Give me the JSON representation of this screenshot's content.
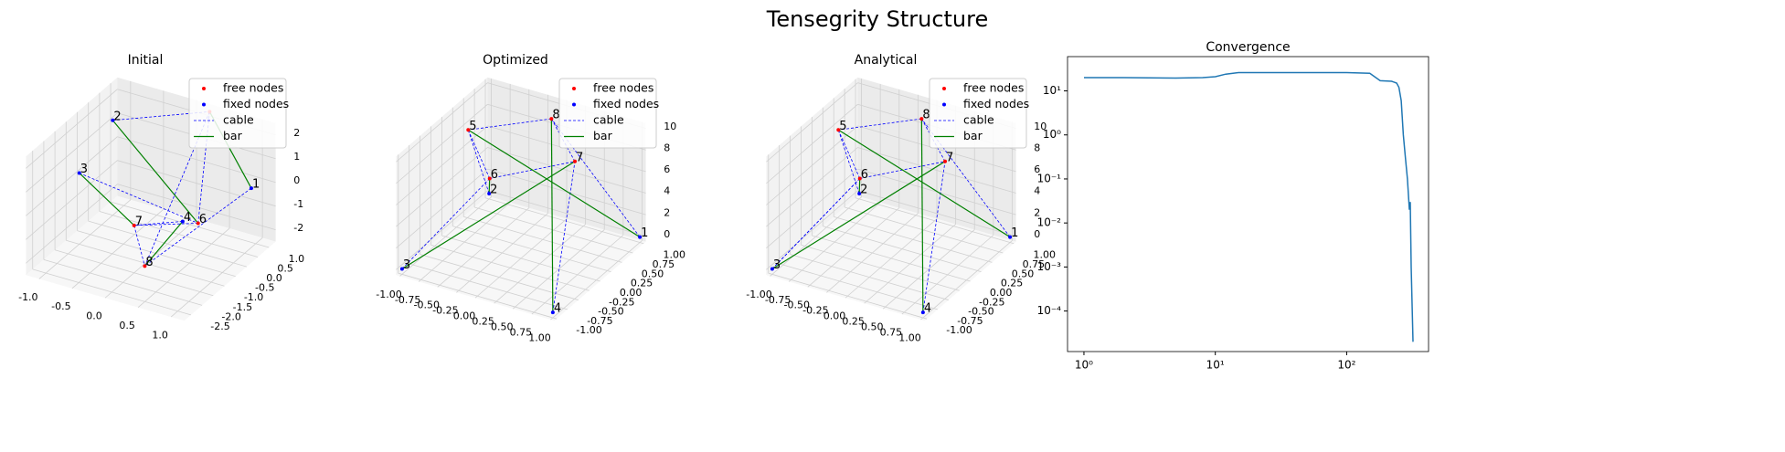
{
  "title": "Tensegrity Structure",
  "chart_data": [
    {
      "type": "network3d",
      "title": "Initial",
      "legend": [
        {
          "name": "free nodes",
          "color": "#ff0000",
          "kind": "point"
        },
        {
          "name": "fixed nodes",
          "color": "#0000ff",
          "kind": "point"
        },
        {
          "name": "cable",
          "color": "#0000ff",
          "kind": "dashed"
        },
        {
          "name": "bar",
          "color": "#008000",
          "kind": "solid"
        }
      ],
      "nodes": {
        "labels": [
          "1",
          "2",
          "3",
          "4",
          null,
          "6",
          "7",
          "8"
        ],
        "x": [
          1.0,
          -1.0,
          -1.0,
          0.5,
          0.3,
          0.7,
          0.0,
          0.5
        ],
        "y": [
          0.8,
          0.5,
          -1.0,
          -0.8,
          1.0,
          -0.7,
          -1.5,
          -2.5
        ],
        "z": [
          0.0,
          1.5,
          0.5,
          -0.5,
          2.5,
          -0.5,
          -0.5,
          -1.0
        ],
        "fixed": [
          true,
          true,
          true,
          true,
          false,
          false,
          false,
          false
        ]
      },
      "cables": [
        [
          5,
          6
        ],
        [
          6,
          7
        ],
        [
          7,
          8
        ],
        [
          8,
          5
        ],
        [
          3,
          6
        ],
        [
          2,
          5
        ],
        [
          4,
          7
        ],
        [
          1,
          8
        ]
      ],
      "bars": [
        [
          1,
          5
        ],
        [
          3,
          7
        ],
        [
          4,
          8
        ],
        [
          2,
          6
        ]
      ],
      "xlim": [
        -1.2,
        1.2
      ],
      "ylim": [
        -2.8,
        1.3
      ],
      "zlim": [
        -2.5,
        2.5
      ],
      "xticks": [
        {
          "value": -1,
          "label": "-1.0"
        },
        {
          "value": -0.5,
          "label": "-0.5"
        },
        {
          "value": 0,
          "label": "0.0"
        },
        {
          "value": 0.5,
          "label": "0.5"
        },
        {
          "value": 1,
          "label": "1.0"
        }
      ],
      "yticks": [
        {
          "value": -2.5,
          "label": "-2.5"
        },
        {
          "value": -2,
          "label": "-2.0"
        },
        {
          "value": -1.5,
          "label": "-1.5"
        },
        {
          "value": -1,
          "label": "-1.0"
        },
        {
          "value": -0.5,
          "label": "-0.5"
        },
        {
          "value": 0,
          "label": "0.0"
        },
        {
          "value": 0.5,
          "label": "0.5"
        },
        {
          "value": 1,
          "label": "1.0"
        }
      ],
      "zticks": [
        -2,
        -1,
        0,
        1,
        2
      ]
    },
    {
      "type": "network3d",
      "title": "Optimized",
      "legend": [
        {
          "name": "free nodes",
          "color": "#ff0000",
          "kind": "point"
        },
        {
          "name": "fixed nodes",
          "color": "#0000ff",
          "kind": "point"
        },
        {
          "name": "cable",
          "color": "#0000ff",
          "kind": "dashed"
        },
        {
          "name": "bar",
          "color": "#008000",
          "kind": "solid"
        }
      ],
      "nodes": {
        "labels": [
          "1",
          "2",
          "3",
          "4",
          "5",
          "6",
          "7",
          "8"
        ],
        "x": [
          1.0,
          -1.0,
          -1.0,
          1.0,
          -0.7,
          -0.3,
          0.6,
          0.0
        ],
        "y": [
          1.0,
          1.0,
          -1.0,
          -1.0,
          0.0,
          -0.2,
          0.2,
          0.7
        ],
        "z": [
          0,
          0,
          0,
          0,
          10,
          7,
          9,
          10
        ],
        "fixed": [
          true,
          true,
          true,
          true,
          false,
          false,
          false,
          false
        ]
      },
      "cables": [
        [
          5,
          6
        ],
        [
          6,
          7
        ],
        [
          7,
          8
        ],
        [
          8,
          5
        ],
        [
          3,
          6
        ],
        [
          2,
          5
        ],
        [
          4,
          7
        ],
        [
          1,
          8
        ]
      ],
      "bars": [
        [
          1,
          5
        ],
        [
          3,
          7
        ],
        [
          4,
          8
        ],
        [
          2,
          6
        ]
      ],
      "xlim": [
        -1.05,
        1.05
      ],
      "ylim": [
        -1.05,
        1.05
      ],
      "zlim": [
        -0.5,
        10.5
      ],
      "xticks": [
        {
          "value": -1,
          "label": "-1.00"
        },
        {
          "value": -0.75,
          "label": "-0.75"
        },
        {
          "value": -0.5,
          "label": "-0.50"
        },
        {
          "value": -0.25,
          "label": "-0.25"
        },
        {
          "value": 0,
          "label": "0.00"
        },
        {
          "value": 0.25,
          "label": "0.25"
        },
        {
          "value": 0.5,
          "label": "0.50"
        },
        {
          "value": 0.75,
          "label": "0.75"
        },
        {
          "value": 1,
          "label": "1.00"
        }
      ],
      "yticks": [
        {
          "value": -1,
          "label": "-1.00"
        },
        {
          "value": -0.75,
          "label": "-0.75"
        },
        {
          "value": -0.5,
          "label": "-0.50"
        },
        {
          "value": -0.25,
          "label": "-0.25"
        },
        {
          "value": 0,
          "label": "0.00"
        },
        {
          "value": 0.25,
          "label": "0.25"
        },
        {
          "value": 0.5,
          "label": "0.50"
        },
        {
          "value": 0.75,
          "label": "0.75"
        },
        {
          "value": 1,
          "label": "1.00"
        }
      ],
      "zticks": [
        0,
        2,
        4,
        6,
        8,
        10
      ]
    },
    {
      "type": "network3d",
      "title": "Analytical",
      "legend": [
        {
          "name": "free nodes",
          "color": "#ff0000",
          "kind": "point"
        },
        {
          "name": "fixed nodes",
          "color": "#0000ff",
          "kind": "point"
        },
        {
          "name": "cable",
          "color": "#0000ff",
          "kind": "dashed"
        },
        {
          "name": "bar",
          "color": "#008000",
          "kind": "solid"
        }
      ],
      "nodes": {
        "labels": [
          "1",
          "2",
          "3",
          "4",
          "5",
          "6",
          "7",
          "8"
        ],
        "x": [
          1.0,
          -1.0,
          -1.0,
          1.0,
          -0.7,
          -0.3,
          0.6,
          0.0
        ],
        "y": [
          1.0,
          1.0,
          -1.0,
          -1.0,
          0.0,
          -0.2,
          0.2,
          0.7
        ],
        "z": [
          0,
          0,
          0,
          0,
          10,
          7,
          9,
          10
        ],
        "fixed": [
          true,
          true,
          true,
          true,
          false,
          false,
          false,
          false
        ]
      },
      "cables": [
        [
          5,
          6
        ],
        [
          6,
          7
        ],
        [
          7,
          8
        ],
        [
          8,
          5
        ],
        [
          3,
          6
        ],
        [
          2,
          5
        ],
        [
          4,
          7
        ],
        [
          1,
          8
        ],
        [
          6,
          3
        ]
      ],
      "bars": [
        [
          1,
          5
        ],
        [
          3,
          7
        ],
        [
          4,
          8
        ],
        [
          2,
          6
        ]
      ],
      "xlim": [
        -1.05,
        1.05
      ],
      "ylim": [
        -1.05,
        1.05
      ],
      "zlim": [
        -0.5,
        10.5
      ],
      "xticks": [
        {
          "value": -1,
          "label": "-1.00"
        },
        {
          "value": -0.75,
          "label": "-0.75"
        },
        {
          "value": -0.5,
          "label": "-0.50"
        },
        {
          "value": -0.25,
          "label": "-0.25"
        },
        {
          "value": 0,
          "label": "0.00"
        },
        {
          "value": 0.25,
          "label": "0.25"
        },
        {
          "value": 0.5,
          "label": "0.50"
        },
        {
          "value": 0.75,
          "label": "0.75"
        },
        {
          "value": 1,
          "label": "1.00"
        }
      ],
      "yticks": [
        {
          "value": -1,
          "label": "-1.00"
        },
        {
          "value": -0.75,
          "label": "-0.75"
        },
        {
          "value": -0.5,
          "label": "-0.50"
        },
        {
          "value": -0.25,
          "label": "-0.25"
        },
        {
          "value": 0,
          "label": "0.00"
        },
        {
          "value": 0.25,
          "label": "0.25"
        },
        {
          "value": 0.5,
          "label": "0.50"
        },
        {
          "value": 0.75,
          "label": "0.75"
        },
        {
          "value": 1,
          "label": "1.00"
        }
      ],
      "zticks": [
        0,
        2,
        4,
        6,
        8,
        10
      ]
    },
    {
      "type": "line",
      "title": "Convergence",
      "color": "#1f77b4",
      "xscale": "log",
      "yscale": "log",
      "x": [
        1,
        2,
        5,
        8,
        10,
        12,
        15,
        30,
        60,
        100,
        150,
        180,
        220,
        240,
        250,
        260,
        270,
        280,
        290,
        300,
        305,
        310,
        320
      ],
      "values": [
        20,
        20,
        19.5,
        20,
        21,
        24,
        26,
        26,
        26,
        26,
        25,
        17,
        16.5,
        15,
        12,
        6,
        1,
        0.3,
        0.1,
        0.02,
        0.03,
        0.001,
        2e-05
      ],
      "xlim": [
        0.75,
        420
      ],
      "ylim": [
        1.2e-05,
        60
      ],
      "xticks": [
        {
          "value": 1,
          "label": "10⁰"
        },
        {
          "value": 10,
          "label": "10¹"
        },
        {
          "value": 100,
          "label": "10²"
        }
      ],
      "yticks": [
        {
          "value": 0.0001,
          "label": "10⁻⁴"
        },
        {
          "value": 0.001,
          "label": "10⁻³"
        },
        {
          "value": 0.01,
          "label": "10⁻²"
        },
        {
          "value": 0.1,
          "label": "10⁻¹"
        },
        {
          "value": 1,
          "label": "10⁰"
        },
        {
          "value": 10,
          "label": "10¹"
        }
      ]
    }
  ]
}
